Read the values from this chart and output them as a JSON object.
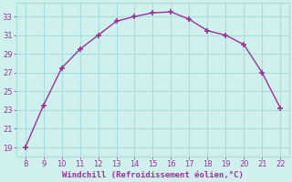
{
  "x": [
    8,
    9,
    10,
    11,
    12,
    13,
    14,
    15,
    16,
    17,
    18,
    19,
    20,
    21,
    22
  ],
  "y": [
    19,
    23.5,
    27.5,
    29.5,
    31,
    32.5,
    33,
    33.4,
    33.5,
    32.7,
    31.5,
    31,
    30,
    27,
    23.2
  ],
  "line_color": "#993399",
  "marker": "+",
  "marker_size": 5,
  "marker_lw": 1.2,
  "bg_color": "#cff0ec",
  "grid_color": "#aadddd",
  "xlabel": "Windchill (Refroidissement éolien,°C)",
  "xlabel_color": "#993399",
  "tick_color": "#993399",
  "xlim": [
    7.5,
    22.5
  ],
  "ylim": [
    18,
    34.5
  ],
  "xticks": [
    8,
    9,
    10,
    11,
    12,
    13,
    14,
    15,
    16,
    17,
    18,
    19,
    20,
    21,
    22
  ],
  "yticks": [
    19,
    21,
    23,
    25,
    27,
    29,
    31,
    33
  ]
}
